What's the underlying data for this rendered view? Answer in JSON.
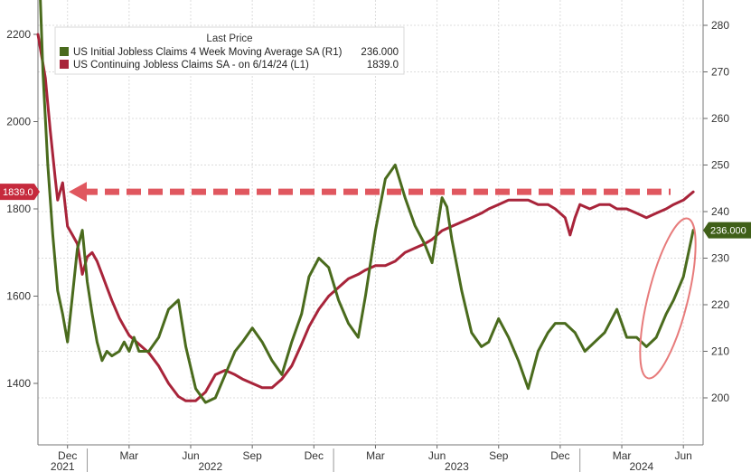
{
  "chart_data": {
    "type": "line",
    "legend": {
      "header": "Last Price",
      "placement": "top-left",
      "entries": [
        {
          "label": "US Initial Jobless Claims 4 Week Moving Average SA  (R1)",
          "value": "236.000",
          "color": "#4a6b1d"
        },
        {
          "label": "US Continuing Jobless Claims SA -  on 6/14/24  (L1)",
          "value": "1839.0",
          "color": "#a8243a"
        }
      ]
    },
    "x_axis": {
      "month_ticks": [
        "Dec",
        "Mar",
        "Jun",
        "Sep",
        "Dec",
        "Mar",
        "Jun",
        "Sep",
        "Dec",
        "Mar",
        "Jun"
      ],
      "year_labels": [
        "2021",
        "2022",
        "2023",
        "2024"
      ],
      "range": [
        "2021-10",
        "2024-06"
      ]
    },
    "left_axis": {
      "ticks": [
        "2200",
        "2000",
        "1800",
        "1600",
        "1400"
      ],
      "range": [
        1250,
        2270
      ]
    },
    "right_axis": {
      "ticks": [
        "280",
        "270",
        "260",
        "250",
        "240",
        "230",
        "220",
        "210",
        "200"
      ],
      "range": [
        190,
        284
      ]
    },
    "grid": true,
    "annotations": {
      "left_tag": "1839.0",
      "right_tag": "236.000",
      "arrow": "dashed arrow pointing left at 1839.0 level",
      "circle": "red ellipse around rise in initial claims, 2024"
    },
    "series": [
      {
        "name": "US Continuing Jobless Claims SA",
        "axis": "left",
        "color": "#a8243a",
        "x": [
          2021.8,
          2021.83,
          2021.85,
          2021.87,
          2021.88,
          2021.9,
          2021.92,
          2021.94,
          2021.96,
          2021.98,
          2022.0,
          2022.02,
          2022.04,
          2022.06,
          2022.08,
          2022.1,
          2022.13,
          2022.15,
          2022.17,
          2022.19,
          2022.21,
          2022.25,
          2022.29,
          2022.33,
          2022.37,
          2022.4,
          2022.44,
          2022.48,
          2022.52,
          2022.56,
          2022.6,
          2022.63,
          2022.67,
          2022.71,
          2022.75,
          2022.79,
          2022.83,
          2022.87,
          2022.9,
          2022.94,
          2022.98,
          2023.02,
          2023.06,
          2023.1,
          2023.13,
          2023.17,
          2023.21,
          2023.25,
          2023.29,
          2023.33,
          2023.37,
          2023.4,
          2023.44,
          2023.48,
          2023.52,
          2023.56,
          2023.6,
          2023.63,
          2023.67,
          2023.71,
          2023.75,
          2023.79,
          2023.83,
          2023.87,
          2023.9,
          2023.94,
          2023.96,
          2023.98,
          2024.0,
          2024.04,
          2024.08,
          2024.12,
          2024.15,
          2024.19,
          2024.23,
          2024.27,
          2024.31,
          2024.35,
          2024.38,
          2024.42,
          2024.46
        ],
        "values": [
          2200,
          2100,
          1980,
          1870,
          1820,
          1860,
          1760,
          1740,
          1720,
          1650,
          1690,
          1700,
          1680,
          1650,
          1620,
          1590,
          1550,
          1530,
          1510,
          1500,
          1490,
          1470,
          1440,
          1400,
          1370,
          1360,
          1360,
          1380,
          1420,
          1430,
          1420,
          1410,
          1400,
          1390,
          1390,
          1410,
          1440,
          1490,
          1530,
          1570,
          1600,
          1620,
          1640,
          1650,
          1660,
          1670,
          1670,
          1680,
          1700,
          1710,
          1720,
          1730,
          1750,
          1760,
          1770,
          1780,
          1790,
          1800,
          1810,
          1820,
          1820,
          1820,
          1810,
          1810,
          1800,
          1780,
          1740,
          1780,
          1810,
          1800,
          1810,
          1810,
          1800,
          1800,
          1790,
          1780,
          1790,
          1800,
          1810,
          1820,
          1839
        ]
      },
      {
        "name": "US Initial Jobless Claims 4 Week Moving Average SA",
        "axis": "right",
        "color": "#4a6b1d",
        "x": [
          2021.8,
          2021.82,
          2021.84,
          2021.86,
          2021.88,
          2021.9,
          2021.92,
          2021.94,
          2021.96,
          2021.98,
          2022.0,
          2022.02,
          2022.04,
          2022.06,
          2022.08,
          2022.1,
          2022.13,
          2022.15,
          2022.17,
          2022.19,
          2022.21,
          2022.25,
          2022.29,
          2022.33,
          2022.37,
          2022.4,
          2022.44,
          2022.48,
          2022.52,
          2022.56,
          2022.6,
          2022.63,
          2022.67,
          2022.71,
          2022.75,
          2022.79,
          2022.83,
          2022.87,
          2022.9,
          2022.94,
          2022.98,
          2023.02,
          2023.06,
          2023.1,
          2023.13,
          2023.17,
          2023.21,
          2023.25,
          2023.29,
          2023.33,
          2023.37,
          2023.4,
          2023.44,
          2023.46,
          2023.48,
          2023.52,
          2023.56,
          2023.6,
          2023.63,
          2023.67,
          2023.71,
          2023.75,
          2023.79,
          2023.83,
          2023.87,
          2023.9,
          2023.94,
          2023.98,
          2024.02,
          2024.06,
          2024.1,
          2024.15,
          2024.19,
          2024.23,
          2024.27,
          2024.31,
          2024.35,
          2024.38,
          2024.42,
          2024.46
        ],
        "values": [
          300,
          270,
          250,
          235,
          223,
          218,
          212,
          222,
          232,
          236,
          225,
          218,
          212,
          208,
          210,
          209,
          210,
          212,
          210,
          213,
          210,
          210,
          213,
          219,
          221,
          211,
          202,
          199,
          200,
          205,
          210,
          212,
          215,
          212,
          208,
          205,
          212,
          218,
          226,
          230,
          228,
          221,
          216,
          213,
          222,
          236,
          247,
          250,
          243,
          237,
          233,
          229,
          243,
          241,
          234,
          223,
          214,
          211,
          212,
          217,
          213,
          208,
          202,
          210,
          214,
          216,
          216,
          214,
          210,
          212,
          214,
          219,
          213,
          213,
          211,
          213,
          218,
          221,
          226,
          236
        ]
      }
    ]
  }
}
